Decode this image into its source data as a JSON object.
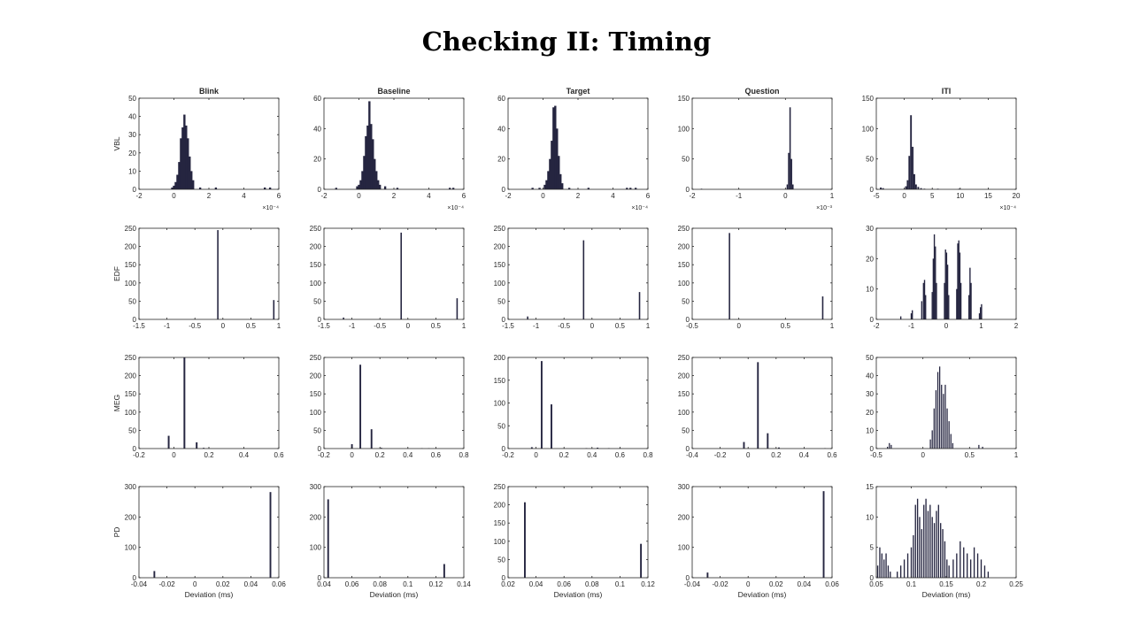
{
  "title": "Checking II: Timing",
  "columns": [
    "Blink",
    "Baseline",
    "Target",
    "Question",
    "ITI"
  ],
  "rows": [
    "VBL",
    "EDF",
    "MEG",
    "PD"
  ],
  "colors": {
    "bar": "#252540",
    "axis": "#262626"
  },
  "chart_data": [
    {
      "type": "bar",
      "row": "VBL",
      "column": "Blink",
      "title": "Blink",
      "ylabel": "VBL",
      "xlabel": "",
      "xlim": [
        -2,
        6
      ],
      "ylim": [
        0,
        50
      ],
      "xticks": [
        "-2",
        "0",
        "2",
        "4",
        "6"
      ],
      "yticks": [
        "0",
        "10",
        "20",
        "30",
        "40",
        "50"
      ],
      "x_multiplier": "×10⁻⁴",
      "bar_width": 0.12,
      "x": [
        -0.1,
        0,
        0.1,
        0.2,
        0.3,
        0.4,
        0.5,
        0.6,
        0.7,
        0.8,
        0.9,
        1.0,
        1.1,
        1.5,
        2.4,
        5.2,
        5.5
      ],
      "values": [
        1,
        2,
        4,
        8,
        15,
        28,
        34,
        41,
        35,
        28,
        18,
        10,
        5,
        1,
        1,
        1,
        1
      ]
    },
    {
      "type": "bar",
      "row": "VBL",
      "column": "Baseline",
      "title": "Baseline",
      "ylabel": "",
      "xlabel": "",
      "xlim": [
        -2,
        6
      ],
      "ylim": [
        0,
        60
      ],
      "xticks": [
        "-2",
        "0",
        "2",
        "4",
        "6"
      ],
      "yticks": [
        "0",
        "20",
        "40",
        "60"
      ],
      "x_multiplier": "×10⁻⁴",
      "bar_width": 0.12,
      "x": [
        -1.3,
        -0.1,
        0,
        0.1,
        0.2,
        0.3,
        0.4,
        0.5,
        0.6,
        0.7,
        0.8,
        0.9,
        1.0,
        1.1,
        1.2,
        1.5,
        2.2,
        5.2,
        5.4
      ],
      "values": [
        1,
        2,
        3,
        6,
        12,
        22,
        35,
        42,
        58,
        43,
        33,
        20,
        12,
        6,
        3,
        2,
        1,
        1,
        1
      ]
    },
    {
      "type": "bar",
      "row": "VBL",
      "column": "Target",
      "title": "Target",
      "ylabel": "",
      "xlabel": "",
      "xlim": [
        -2,
        6
      ],
      "ylim": [
        0,
        60
      ],
      "xticks": [
        "-2",
        "0",
        "2",
        "4",
        "6"
      ],
      "yticks": [
        "0",
        "20",
        "40",
        "60"
      ],
      "x_multiplier": "×10⁻⁴",
      "bar_width": 0.12,
      "x": [
        -0.6,
        -0.2,
        0.1,
        0.2,
        0.3,
        0.4,
        0.5,
        0.6,
        0.7,
        0.8,
        0.9,
        1.0,
        1.1,
        1.5,
        2.6,
        4.8,
        5.0,
        5.3
      ],
      "values": [
        1,
        1,
        3,
        6,
        12,
        20,
        32,
        54,
        55,
        40,
        22,
        10,
        4,
        1,
        1,
        1,
        1,
        1
      ]
    },
    {
      "type": "bar",
      "row": "VBL",
      "column": "Question",
      "title": "Question",
      "ylabel": "",
      "xlabel": "",
      "xlim": [
        -2,
        1
      ],
      "ylim": [
        0,
        150
      ],
      "xticks": [
        "-2",
        "-1",
        "0",
        "1"
      ],
      "yticks": [
        "0",
        "50",
        "100",
        "150"
      ],
      "x_multiplier": "×10⁻³",
      "bar_width": 0.03,
      "x": [
        -1.8,
        0.04,
        0.07,
        0.1,
        0.13,
        0.16
      ],
      "values": [
        1,
        8,
        60,
        135,
        50,
        8
      ]
    },
    {
      "type": "bar",
      "row": "VBL",
      "column": "ITI",
      "title": "ITI",
      "ylabel": "",
      "xlabel": "",
      "xlim": [
        -5,
        20
      ],
      "ylim": [
        0,
        150
      ],
      "xticks": [
        "-5",
        "0",
        "5",
        "10",
        "15",
        "20"
      ],
      "yticks": [
        "0",
        "50",
        "100",
        "150"
      ],
      "x_multiplier": "×10⁻⁴",
      "bar_width": 0.3,
      "x": [
        -4.2,
        -3.8,
        0.3,
        0.6,
        0.9,
        1.2,
        1.5,
        1.8,
        2.1,
        2.5,
        3.0,
        3.6,
        6.0,
        9.8
      ],
      "values": [
        3,
        2,
        5,
        15,
        55,
        122,
        70,
        25,
        8,
        4,
        2,
        1,
        1,
        1
      ]
    },
    {
      "type": "bar",
      "row": "EDF",
      "column": "Blink",
      "title": "",
      "ylabel": "EDF",
      "xlabel": "",
      "xlim": [
        -1.5,
        1
      ],
      "ylim": [
        0,
        250
      ],
      "xticks": [
        "-1.5",
        "-1",
        "-0.5",
        "0",
        "0.5",
        "1"
      ],
      "yticks": [
        "0",
        "50",
        "100",
        "150",
        "200",
        "250"
      ],
      "bar_width": 0.025,
      "x": [
        -0.09,
        0.91
      ],
      "values": [
        245,
        53
      ]
    },
    {
      "type": "bar",
      "row": "EDF",
      "column": "Baseline",
      "title": "",
      "ylabel": "",
      "xlabel": "",
      "xlim": [
        -1.5,
        1
      ],
      "ylim": [
        0,
        250
      ],
      "xticks": [
        "-1.5",
        "-1",
        "-0.5",
        "0",
        "0.5",
        "1"
      ],
      "yticks": [
        "0",
        "50",
        "100",
        "150",
        "200",
        "250"
      ],
      "bar_width": 0.025,
      "x": [
        -1.15,
        -0.12,
        0.88
      ],
      "values": [
        5,
        238,
        58
      ]
    },
    {
      "type": "bar",
      "row": "EDF",
      "column": "Target",
      "title": "",
      "ylabel": "",
      "xlabel": "",
      "xlim": [
        -1.5,
        1
      ],
      "ylim": [
        0,
        250
      ],
      "xticks": [
        "-1.5",
        "-1",
        "-0.5",
        "0",
        "0.5",
        "1"
      ],
      "yticks": [
        "0",
        "50",
        "100",
        "150",
        "200",
        "250"
      ],
      "bar_width": 0.025,
      "x": [
        -1.15,
        -0.15,
        0.85
      ],
      "values": [
        8,
        217,
        75
      ]
    },
    {
      "type": "bar",
      "row": "EDF",
      "column": "Question",
      "title": "",
      "ylabel": "",
      "xlabel": "",
      "xlim": [
        -0.5,
        1
      ],
      "ylim": [
        0,
        250
      ],
      "xticks": [
        "-0.5",
        "0",
        "0.5",
        "1"
      ],
      "yticks": [
        "0",
        "50",
        "100",
        "150",
        "200",
        "250"
      ],
      "bar_width": 0.015,
      "x": [
        -0.1,
        0.9
      ],
      "values": [
        237,
        63
      ]
    },
    {
      "type": "bar",
      "row": "EDF",
      "column": "ITI",
      "title": "",
      "ylabel": "",
      "xlabel": "",
      "xlim": [
        -2,
        2
      ],
      "ylim": [
        0,
        30
      ],
      "xticks": [
        "-2",
        "-1",
        "0",
        "1",
        "2"
      ],
      "yticks": [
        "0",
        "10",
        "20",
        "30"
      ],
      "bar_width": 0.035,
      "x": [
        -1.3,
        -1.0,
        -0.97,
        -0.7,
        -0.65,
        -0.62,
        -0.59,
        -0.4,
        -0.37,
        -0.34,
        -0.31,
        -0.28,
        -0.05,
        -0.02,
        0.01,
        0.04,
        0.07,
        0.3,
        0.33,
        0.36,
        0.39,
        0.42,
        0.65,
        0.68,
        0.71,
        0.95,
        0.98,
        1.01
      ],
      "values": [
        1,
        2,
        3,
        6,
        12,
        13,
        8,
        9,
        20,
        28,
        24,
        12,
        12,
        23,
        22,
        18,
        8,
        10,
        25,
        26,
        22,
        12,
        8,
        17,
        12,
        2,
        4,
        5
      ]
    },
    {
      "type": "bar",
      "row": "MEG",
      "column": "Blink",
      "title": "",
      "ylabel": "MEG",
      "xlabel": "",
      "xlim": [
        -0.2,
        0.6
      ],
      "ylim": [
        0,
        250
      ],
      "xticks": [
        "-0.2",
        "0",
        "0.2",
        "0.4",
        "0.6"
      ],
      "yticks": [
        "0",
        "50",
        "100",
        "150",
        "200",
        "250"
      ],
      "bar_width": 0.01,
      "x": [
        -0.03,
        0.06,
        0.13,
        0.17
      ],
      "values": [
        35,
        250,
        17,
        2
      ]
    },
    {
      "type": "bar",
      "row": "MEG",
      "column": "Baseline",
      "title": "",
      "ylabel": "",
      "xlabel": "",
      "xlim": [
        -0.2,
        0.8
      ],
      "ylim": [
        0,
        250
      ],
      "xticks": [
        "-0.2",
        "0",
        "0.2",
        "0.4",
        "0.6",
        "0.8"
      ],
      "yticks": [
        "0",
        "50",
        "100",
        "150",
        "200",
        "250"
      ],
      "bar_width": 0.012,
      "x": [
        0.0,
        0.06,
        0.14,
        0.21,
        0.5,
        0.55
      ],
      "values": [
        12,
        230,
        53,
        2,
        1,
        1
      ]
    },
    {
      "type": "bar",
      "row": "MEG",
      "column": "Target",
      "title": "",
      "ylabel": "",
      "xlabel": "",
      "xlim": [
        -0.2,
        0.8
      ],
      "ylim": [
        0,
        200
      ],
      "xticks": [
        "-0.2",
        "0",
        "0.2",
        "0.4",
        "0.6",
        "0.8"
      ],
      "yticks": [
        "0",
        "50",
        "100",
        "150",
        "200"
      ],
      "bar_width": 0.012,
      "x": [
        -0.03,
        0.04,
        0.11,
        0.36,
        0.44,
        0.52,
        0.6
      ],
      "values": [
        3,
        192,
        97,
        1,
        2,
        1,
        1
      ]
    },
    {
      "type": "bar",
      "row": "MEG",
      "column": "Question",
      "title": "",
      "ylabel": "",
      "xlabel": "",
      "xlim": [
        -0.4,
        0.6
      ],
      "ylim": [
        0,
        250
      ],
      "xticks": [
        "-0.4",
        "-0.2",
        "0",
        "0.2",
        "0.4",
        "0.6"
      ],
      "yticks": [
        "0",
        "50",
        "100",
        "150",
        "200",
        "250"
      ],
      "bar_width": 0.012,
      "x": [
        -0.03,
        0.07,
        0.14,
        0.22,
        0.55
      ],
      "values": [
        18,
        237,
        42,
        3,
        1
      ]
    },
    {
      "type": "bar",
      "row": "MEG",
      "column": "ITI",
      "title": "",
      "ylabel": "",
      "xlabel": "",
      "xlim": [
        -0.5,
        1
      ],
      "ylim": [
        0,
        50
      ],
      "xticks": [
        "-0.5",
        "0",
        "0.5",
        "1"
      ],
      "yticks": [
        "0",
        "10",
        "20",
        "30",
        "40",
        "50"
      ],
      "bar_width": 0.012,
      "x": [
        -0.38,
        -0.36,
        -0.34,
        0.08,
        0.1,
        0.12,
        0.14,
        0.16,
        0.18,
        0.2,
        0.22,
        0.24,
        0.26,
        0.28,
        0.3,
        0.32,
        0.6,
        0.64
      ],
      "values": [
        1,
        3,
        2,
        5,
        10,
        22,
        32,
        42,
        45,
        35,
        30,
        35,
        22,
        15,
        8,
        3,
        2,
        1
      ]
    },
    {
      "type": "bar",
      "row": "PD",
      "column": "Blink",
      "title": "",
      "ylabel": "PD",
      "xlabel": "Deviation (ms)",
      "xlim": [
        -0.04,
        0.06
      ],
      "ylim": [
        0,
        300
      ],
      "xticks": [
        "-0.04",
        "-0.02",
        "0",
        "0.02",
        "0.04",
        "0.06"
      ],
      "yticks": [
        "0",
        "100",
        "200",
        "300"
      ],
      "bar_width": 0.0012,
      "x": [
        -0.029,
        0.054
      ],
      "values": [
        22,
        282
      ]
    },
    {
      "type": "bar",
      "row": "PD",
      "column": "Baseline",
      "title": "",
      "ylabel": "",
      "xlabel": "Deviation (ms)",
      "xlim": [
        0.04,
        0.14
      ],
      "ylim": [
        0,
        300
      ],
      "xticks": [
        "0.04",
        "0.06",
        "0.08",
        "0.1",
        "0.12",
        "0.14"
      ],
      "yticks": [
        "0",
        "100",
        "200",
        "300"
      ],
      "bar_width": 0.0012,
      "x": [
        0.043,
        0.126
      ],
      "values": [
        258,
        45
      ]
    },
    {
      "type": "bar",
      "row": "PD",
      "column": "Target",
      "title": "",
      "ylabel": "",
      "xlabel": "Deviation (ms)",
      "xlim": [
        0.02,
        0.12
      ],
      "ylim": [
        0,
        250
      ],
      "xticks": [
        "0.02",
        "0.04",
        "0.06",
        "0.08",
        "0.1",
        "0.12"
      ],
      "yticks": [
        "0",
        "50",
        "100",
        "150",
        "200",
        "250"
      ],
      "bar_width": 0.0012,
      "x": [
        0.032,
        0.115
      ],
      "values": [
        207,
        93
      ]
    },
    {
      "type": "bar",
      "row": "PD",
      "column": "Question",
      "title": "",
      "ylabel": "",
      "xlabel": "Deviation (ms)",
      "xlim": [
        -0.04,
        0.06
      ],
      "ylim": [
        0,
        300
      ],
      "xticks": [
        "-0.04",
        "-0.02",
        "0",
        "0.02",
        "0.04",
        "0.06"
      ],
      "yticks": [
        "0",
        "100",
        "200",
        "300"
      ],
      "bar_width": 0.0012,
      "x": [
        -0.029,
        0.054
      ],
      "values": [
        17,
        285
      ]
    },
    {
      "type": "bar",
      "row": "PD",
      "column": "ITI",
      "title": "",
      "ylabel": "",
      "xlabel": "Deviation (ms)",
      "xlim": [
        0.05,
        0.25
      ],
      "ylim": [
        0,
        15
      ],
      "xticks": [
        "0.05",
        "0.1",
        "0.15",
        "0.2",
        "0.25"
      ],
      "yticks": [
        "0",
        "5",
        "10",
        "15"
      ],
      "bar_width": 0.0017,
      "x": [
        0.052,
        0.055,
        0.058,
        0.061,
        0.064,
        0.067,
        0.07,
        0.08,
        0.085,
        0.09,
        0.095,
        0.1,
        0.103,
        0.106,
        0.109,
        0.112,
        0.115,
        0.118,
        0.121,
        0.124,
        0.127,
        0.13,
        0.133,
        0.136,
        0.139,
        0.142,
        0.145,
        0.148,
        0.151,
        0.154,
        0.16,
        0.165,
        0.17,
        0.175,
        0.18,
        0.185,
        0.19,
        0.195,
        0.2,
        0.205,
        0.21
      ],
      "values": [
        2,
        5,
        4,
        3,
        4,
        2,
        1,
        1,
        2,
        3,
        4,
        5,
        7,
        12,
        13,
        10,
        8,
        12,
        13,
        11,
        12,
        10,
        9,
        11,
        12,
        9,
        8,
        6,
        3,
        2,
        3,
        4,
        6,
        5,
        4,
        3,
        5,
        4,
        3,
        2,
        1
      ]
    }
  ]
}
